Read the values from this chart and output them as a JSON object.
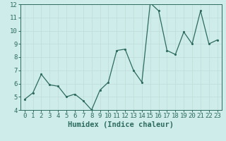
{
  "x": [
    0,
    1,
    2,
    3,
    4,
    5,
    6,
    7,
    8,
    9,
    10,
    11,
    12,
    13,
    14,
    15,
    16,
    17,
    18,
    19,
    20,
    21,
    22,
    23
  ],
  "y": [
    4.8,
    5.3,
    6.7,
    5.9,
    5.8,
    5.0,
    5.2,
    4.7,
    4.0,
    5.5,
    6.1,
    8.5,
    8.6,
    7.0,
    6.1,
    12.1,
    11.5,
    8.5,
    8.2,
    9.9,
    9.0,
    11.5,
    9.0,
    9.3
  ],
  "xlabel": "Humidex (Indice chaleur)",
  "ylim": [
    4,
    12
  ],
  "xlim": [
    -0.5,
    23.5
  ],
  "yticks": [
    4,
    5,
    6,
    7,
    8,
    9,
    10,
    11,
    12
  ],
  "xticks": [
    0,
    1,
    2,
    3,
    4,
    5,
    6,
    7,
    8,
    9,
    10,
    11,
    12,
    13,
    14,
    15,
    16,
    17,
    18,
    19,
    20,
    21,
    22,
    23
  ],
  "line_color": "#2d6b5e",
  "marker": ".",
  "bg_color": "#ceecea",
  "grid_color": "#c0dbd8",
  "axis_color": "#2d6b5e",
  "tick_label_fontsize": 6.5,
  "xlabel_fontsize": 7.5
}
